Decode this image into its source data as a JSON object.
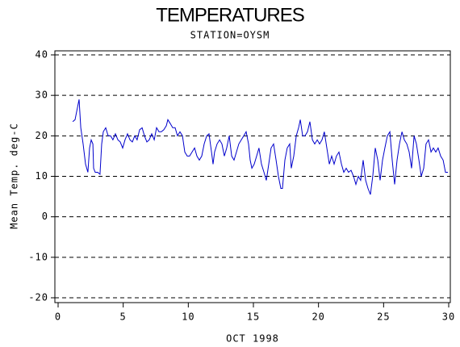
{
  "chart_data": {
    "type": "line",
    "title": "TEMPERATURES",
    "subtitle": "STATION=OYSM",
    "xlabel": "OCT 1998",
    "ylabel": "Mean Temp. deg-C",
    "xlim": [
      0,
      30
    ],
    "xticks": [
      0,
      5,
      10,
      15,
      20,
      25,
      30
    ],
    "ylim": [
      -20,
      40
    ],
    "yticks": [
      -20,
      -10,
      0,
      10,
      20,
      30,
      40
    ],
    "grid": true,
    "color": "#0000cc",
    "x": [
      1.12,
      1.3,
      1.55,
      1.61,
      1.74,
      1.92,
      2.11,
      2.29,
      2.42,
      2.54,
      2.67,
      2.73,
      2.85,
      3.04,
      3.22,
      3.35,
      3.47,
      3.66,
      3.84,
      4.03,
      4.21,
      4.4,
      4.59,
      4.77,
      4.96,
      5.14,
      5.33,
      5.52,
      5.7,
      5.89,
      6.07,
      6.26,
      6.45,
      6.63,
      6.82,
      7.0,
      7.19,
      7.38,
      7.56,
      7.75,
      7.93,
      8.12,
      8.31,
      8.43,
      8.62,
      8.8,
      8.99,
      9.17,
      9.36,
      9.55,
      9.73,
      9.92,
      10.1,
      10.29,
      10.48,
      10.66,
      10.85,
      11.03,
      11.22,
      11.41,
      11.59,
      11.78,
      11.9,
      12.02,
      12.21,
      12.4,
      12.58,
      12.77,
      12.95,
      13.14,
      13.33,
      13.51,
      13.7,
      13.88,
      14.07,
      14.26,
      14.44,
      14.63,
      14.75,
      14.88,
      15.06,
      15.25,
      15.43,
      15.62,
      15.81,
      15.99,
      16.18,
      16.36,
      16.55,
      16.74,
      16.92,
      17.11,
      17.23,
      17.42,
      17.6,
      17.79,
      17.91,
      18.1,
      18.29,
      18.47,
      18.6,
      18.78,
      18.97,
      19.15,
      19.34,
      19.53,
      19.71,
      19.9,
      20.08,
      20.27,
      20.45,
      20.64,
      20.83,
      21.01,
      21.2,
      21.38,
      21.57,
      21.76,
      21.94,
      22.13,
      22.31,
      22.5,
      22.69,
      22.87,
      23.06,
      23.24,
      23.43,
      23.62,
      23.8,
      23.99,
      24.17,
      24.36,
      24.55,
      24.73,
      24.92,
      25.1,
      25.29,
      25.48,
      25.66,
      25.85,
      26.03,
      26.22,
      26.41,
      26.59,
      26.78,
      26.96,
      27.15,
      27.34,
      27.52,
      27.71,
      27.89,
      28.08,
      28.26,
      28.45,
      28.64,
      28.82,
      29.01,
      29.19,
      29.38,
      29.57,
      29.75,
      29.94
    ],
    "values": [
      23.5,
      24,
      28,
      29,
      22,
      18,
      13,
      11,
      17,
      19,
      18,
      12,
      11,
      11,
      10.5,
      18,
      21,
      22,
      20,
      20,
      19,
      20.5,
      19,
      18.5,
      17,
      19,
      20.5,
      19,
      18.5,
      20,
      19,
      21.5,
      22,
      20,
      18.5,
      19,
      20.5,
      19,
      22,
      21,
      21,
      21.5,
      22.5,
      24,
      23,
      22,
      22,
      20,
      21,
      20,
      16,
      15,
      15,
      16,
      17,
      15,
      14,
      15,
      18,
      20,
      20.5,
      16,
      13,
      16,
      18,
      19,
      18,
      15,
      17,
      20,
      15,
      14,
      16,
      18,
      19,
      20,
      21,
      18,
      14,
      12,
      13,
      15,
      17,
      13,
      11,
      9,
      13,
      17,
      18,
      14,
      10,
      7,
      7,
      14,
      17,
      18,
      12,
      15,
      20,
      22,
      24,
      20,
      20,
      21,
      23.5,
      19,
      18,
      19,
      18,
      19,
      21,
      17,
      13,
      15,
      13,
      15,
      16,
      13,
      11,
      12,
      11,
      11.5,
      10,
      8,
      10,
      9,
      14,
      9,
      7,
      5.5,
      10,
      17,
      14,
      9,
      14,
      17,
      20,
      21,
      14,
      8,
      14,
      18,
      21,
      19,
      18,
      16,
      12,
      20,
      18,
      14,
      10,
      12,
      18,
      19,
      16,
      17,
      16,
      17,
      15,
      14,
      11,
      11
    ]
  }
}
